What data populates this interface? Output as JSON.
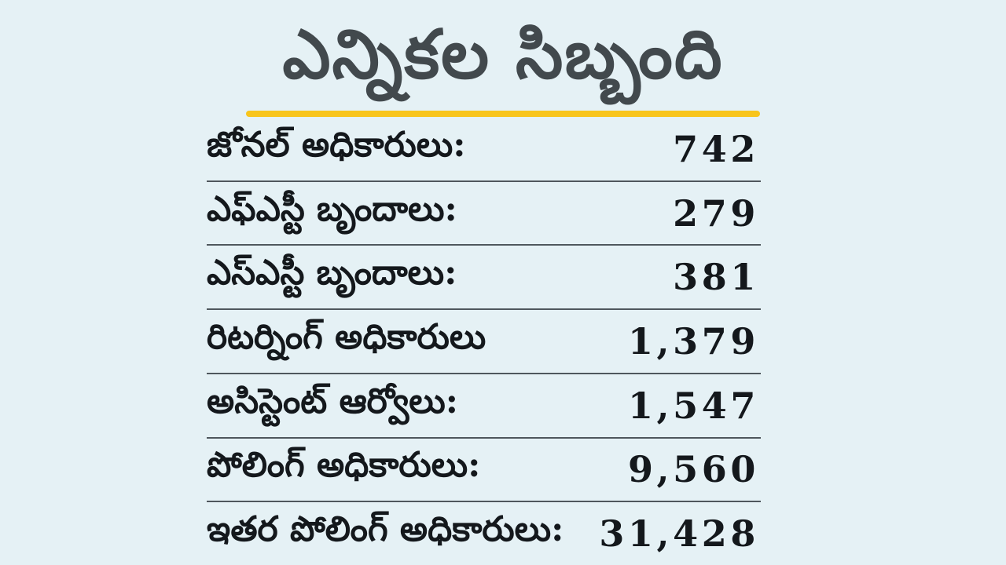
{
  "page": {
    "background_color": "#e5f1f5",
    "accent_color": "#f8c51c",
    "title_color": "#42494d",
    "text_color": "#14181c",
    "divider_color": "#4f575d"
  },
  "header": {
    "title": "ఎన్నికల సిబ్బంది"
  },
  "chart_data": {
    "type": "table",
    "title": "ఎన్నికల సిబ్బంది",
    "columns": [
      "label",
      "value"
    ],
    "rows": [
      {
        "label": "జోనల్ అధికారులు:",
        "value": "742"
      },
      {
        "label": "ఎఫ్ఎస్టీ బృందాలు:",
        "value": "279"
      },
      {
        "label": "ఎస్ఎస్టీ బృందాలు:",
        "value": "381"
      },
      {
        "label": "రిటర్నింగ్ అధికారులు",
        "value": "1,379"
      },
      {
        "label": "అసిస్టెంట్ ఆర్వోలు:",
        "value": "1,547"
      },
      {
        "label": "పోలింగ్ అధికారులు:",
        "value": "9,560"
      },
      {
        "label": "ఇతర పోలింగ్ అధికారులు:",
        "value": "31,428"
      }
    ]
  }
}
